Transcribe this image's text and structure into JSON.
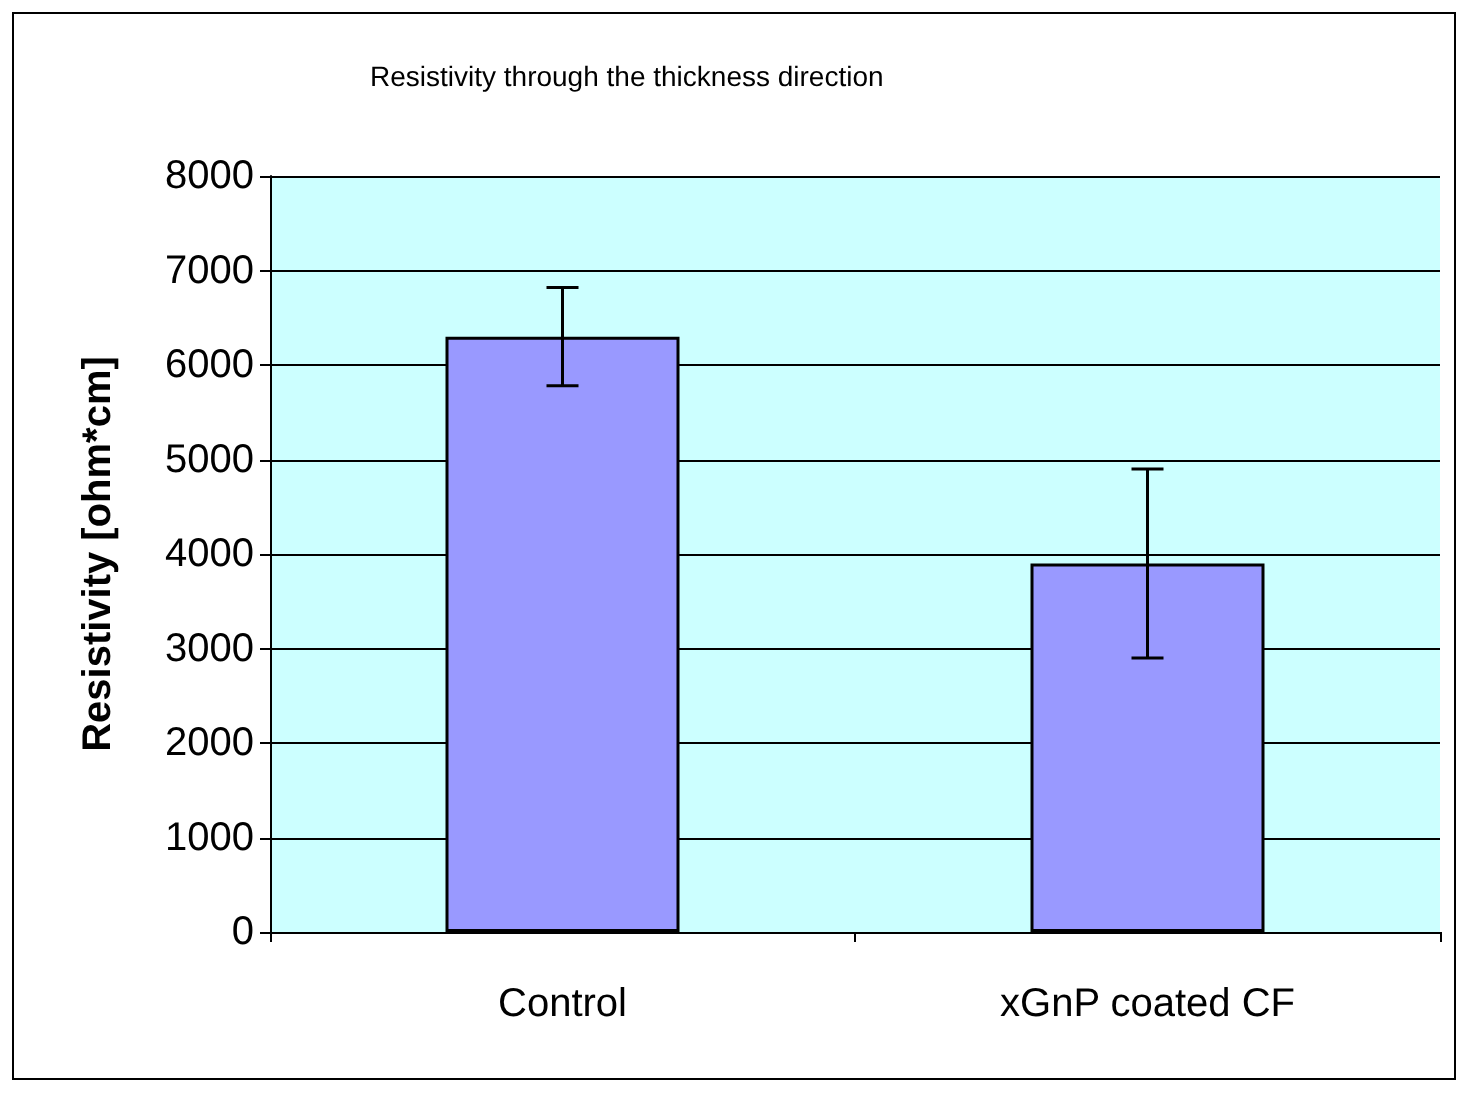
{
  "chart_data": {
    "type": "bar",
    "title": "Resistivity through the thickness direction",
    "ylabel": "Resistivity [ohm*cm]",
    "categories": [
      "Control",
      "xGnP coated CF"
    ],
    "values": [
      6300,
      3900
    ],
    "errors": [
      520,
      1000
    ],
    "color": "#9999ff",
    "ylim": [
      0,
      8000
    ],
    "yticks": [
      0,
      1000,
      2000,
      3000,
      4000,
      5000,
      6000,
      7000,
      8000
    ],
    "grid": "y"
  }
}
